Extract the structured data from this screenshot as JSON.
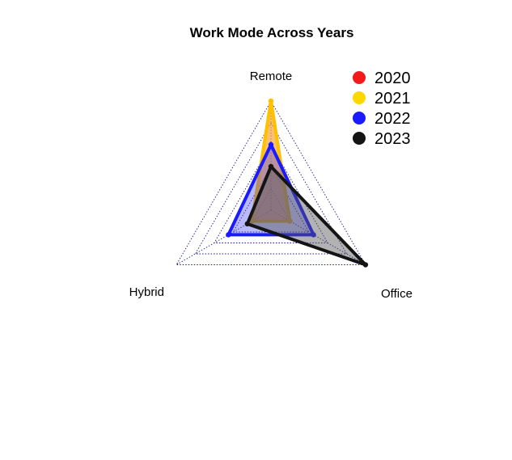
{
  "chart_data": {
    "type": "radar",
    "title": "Work Mode Across Years",
    "axes": [
      "Remote",
      "Office",
      "Hybrid"
    ],
    "range": [
      0,
      1
    ],
    "grid_levels": 5,
    "series": [
      {
        "name": "2020",
        "values": {
          "Remote": 1.0,
          "Office": 0.2,
          "Hybrid": 0.2
        },
        "border": "#FFC000",
        "fill": "#F08030",
        "fill_opacity": 0.55,
        "legend_color": "#F21A1A"
      },
      {
        "name": "2021",
        "values": {
          "Remote": 1.0,
          "Office": 0.2,
          "Hybrid": 0.2
        },
        "border": "#FFC000",
        "fill": "#FFD24A",
        "fill_opacity": 0.35,
        "legend_color": "#FFD700"
      },
      {
        "name": "2022",
        "values": {
          "Remote": 0.6,
          "Office": 0.45,
          "Hybrid": 0.45
        },
        "border": "#1A1AFF",
        "fill": "#3A3AF0",
        "fill_opacity": 0.35,
        "legend_color": "#1A1AFF"
      },
      {
        "name": "2023",
        "values": {
          "Remote": 0.4,
          "Office": 1.0,
          "Hybrid": 0.25
        },
        "border": "#141414",
        "fill": "#555555",
        "fill_opacity": 0.45,
        "legend_color": "#141414"
      }
    ],
    "legend": {
      "position": "top-right"
    }
  }
}
